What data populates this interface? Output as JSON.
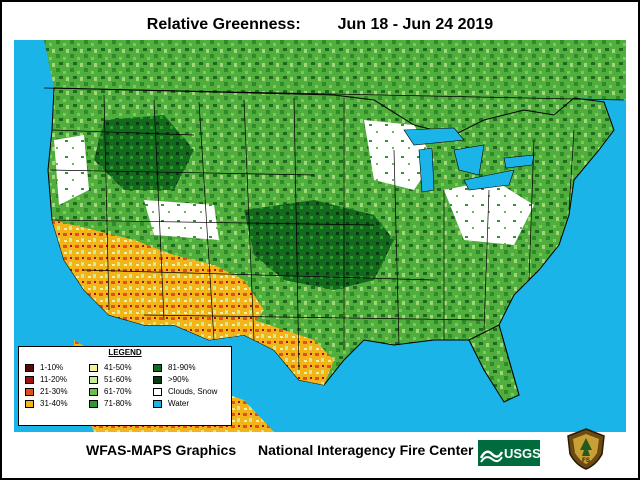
{
  "title": {
    "label": "Relative Greenness:",
    "dates": "Jun 18 - Jun 24 2019"
  },
  "legend": {
    "title": "LEGEND",
    "items": [
      {
        "label": "1-10%",
        "color": "#5a0a0a"
      },
      {
        "label": "11-20%",
        "color": "#a01010"
      },
      {
        "label": "21-30%",
        "color": "#e0501a"
      },
      {
        "label": "31-40%",
        "color": "#f2b418"
      },
      {
        "label": "41-50%",
        "color": "#f4f0a0"
      },
      {
        "label": "51-60%",
        "color": "#c8ec98"
      },
      {
        "label": "61-70%",
        "color": "#66c04a"
      },
      {
        "label": "71-80%",
        "color": "#2e9a2e"
      },
      {
        "label": "81-90%",
        "color": "#136a1e"
      },
      {
        "label": ">90%",
        "color": "#0a3a10"
      },
      {
        "label": "Clouds, Snow",
        "color": "#ffffff"
      },
      {
        "label": "Water",
        "color": "#1ab4e8"
      }
    ]
  },
  "footer": {
    "left": "WFAS-MAPS Graphics",
    "center": "National Interagency Fire Center",
    "usgs_logo_text": "USGS",
    "fs_logo_text": "FS"
  },
  "colors": {
    "water": "#1ab4e8",
    "border": "#000000"
  }
}
